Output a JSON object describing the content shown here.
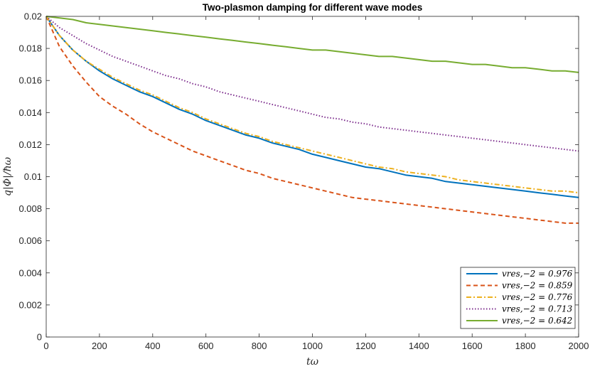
{
  "chart_data": {
    "type": "line",
    "title": "Two-plasmon damping for different wave modes",
    "xlabel": "tω",
    "ylabel": "q|Φ|/ħω",
    "xlim": [
      0,
      2000
    ],
    "ylim": [
      0,
      0.02
    ],
    "xticks": [
      0,
      200,
      400,
      600,
      800,
      1000,
      1200,
      1400,
      1600,
      1800,
      2000
    ],
    "yticks": [
      0,
      0.002,
      0.004,
      0.006,
      0.008,
      0.01,
      0.012,
      0.014,
      0.016,
      0.018,
      0.02
    ],
    "ytick_labels": [
      "0",
      "0.002",
      "0.004",
      "0.006",
      "0.008",
      "0.01",
      "0.012",
      "0.014",
      "0.016",
      "0.018",
      "0.02"
    ],
    "grid": false,
    "legend_position": "bottom-right",
    "series": [
      {
        "name": "v_{res,-2} = 0.976",
        "legend_label": "vres,−2 = 0.976",
        "color": "#0072BD",
        "style": "solid",
        "x": [
          0,
          50,
          100,
          150,
          200,
          250,
          300,
          350,
          400,
          450,
          500,
          550,
          600,
          650,
          700,
          750,
          800,
          850,
          900,
          950,
          1000,
          1050,
          1100,
          1150,
          1200,
          1250,
          1300,
          1350,
          1400,
          1450,
          1500,
          1550,
          1600,
          1650,
          1700,
          1750,
          1800,
          1850,
          1900,
          1950,
          2000
        ],
        "y": [
          0.02,
          0.0188,
          0.0179,
          0.0172,
          0.0166,
          0.0161,
          0.0157,
          0.0153,
          0.015,
          0.0146,
          0.0142,
          0.0139,
          0.0135,
          0.0132,
          0.0129,
          0.0126,
          0.0124,
          0.0121,
          0.0119,
          0.0117,
          0.0114,
          0.0112,
          0.011,
          0.0108,
          0.0106,
          0.0105,
          0.0103,
          0.0101,
          0.01,
          0.0099,
          0.0097,
          0.0096,
          0.0095,
          0.0094,
          0.0093,
          0.0092,
          0.0091,
          0.009,
          0.0089,
          0.0088,
          0.0087
        ]
      },
      {
        "name": "v_{res,-2} = 0.859",
        "legend_label": "vres,−2 = 0.859",
        "color": "#D95319",
        "style": "dashed",
        "x": [
          0,
          50,
          100,
          150,
          200,
          250,
          300,
          350,
          400,
          450,
          500,
          550,
          600,
          650,
          700,
          750,
          800,
          850,
          900,
          950,
          1000,
          1050,
          1100,
          1150,
          1200,
          1250,
          1300,
          1350,
          1400,
          1450,
          1500,
          1550,
          1600,
          1650,
          1700,
          1750,
          1800,
          1850,
          1900,
          1950,
          2000
        ],
        "y": [
          0.02,
          0.0181,
          0.0169,
          0.0159,
          0.015,
          0.0144,
          0.0139,
          0.0133,
          0.0128,
          0.0124,
          0.012,
          0.0116,
          0.0113,
          0.011,
          0.0107,
          0.0104,
          0.0102,
          0.0099,
          0.0097,
          0.0095,
          0.0093,
          0.0091,
          0.0089,
          0.0087,
          0.0086,
          0.0085,
          0.0084,
          0.0083,
          0.0082,
          0.0081,
          0.008,
          0.0079,
          0.0078,
          0.0077,
          0.0076,
          0.0075,
          0.0074,
          0.0073,
          0.0072,
          0.0071,
          0.0071
        ]
      },
      {
        "name": "v_{res,-2} = 0.776",
        "legend_label": "vres,−2 = 0.776",
        "color": "#EDB120",
        "style": "dashdot",
        "x": [
          0,
          50,
          100,
          150,
          200,
          250,
          300,
          350,
          400,
          450,
          500,
          550,
          600,
          650,
          700,
          750,
          800,
          850,
          900,
          950,
          1000,
          1050,
          1100,
          1150,
          1200,
          1250,
          1300,
          1350,
          1400,
          1450,
          1500,
          1550,
          1600,
          1650,
          1700,
          1750,
          1800,
          1850,
          1900,
          1950,
          2000
        ],
        "y": [
          0.02,
          0.0188,
          0.0179,
          0.0172,
          0.0167,
          0.0162,
          0.0158,
          0.0154,
          0.0151,
          0.0147,
          0.0143,
          0.014,
          0.0136,
          0.0133,
          0.013,
          0.0127,
          0.0125,
          0.0122,
          0.012,
          0.0118,
          0.0116,
          0.0114,
          0.0112,
          0.011,
          0.0108,
          0.0106,
          0.0105,
          0.0103,
          0.0102,
          0.0101,
          0.01,
          0.0098,
          0.0097,
          0.0096,
          0.0095,
          0.0094,
          0.0093,
          0.0092,
          0.0091,
          0.0091,
          0.009
        ]
      },
      {
        "name": "v_{res,-2} = 0.713",
        "legend_label": "vres,−2 = 0.713",
        "color": "#7E2F8E",
        "style": "dotted",
        "x": [
          0,
          50,
          100,
          150,
          200,
          250,
          300,
          350,
          400,
          450,
          500,
          550,
          600,
          650,
          700,
          750,
          800,
          850,
          900,
          950,
          1000,
          1050,
          1100,
          1150,
          1200,
          1250,
          1300,
          1350,
          1400,
          1450,
          1500,
          1550,
          1600,
          1650,
          1700,
          1750,
          1800,
          1850,
          1900,
          1950,
          2000
        ],
        "y": [
          0.02,
          0.0193,
          0.0188,
          0.0183,
          0.0179,
          0.0175,
          0.0172,
          0.0169,
          0.0166,
          0.0163,
          0.0161,
          0.0158,
          0.0156,
          0.0153,
          0.0151,
          0.0149,
          0.0147,
          0.0145,
          0.0143,
          0.0141,
          0.0139,
          0.0137,
          0.0136,
          0.0134,
          0.0133,
          0.0131,
          0.013,
          0.0129,
          0.0128,
          0.0127,
          0.0126,
          0.0125,
          0.0124,
          0.0123,
          0.0122,
          0.0121,
          0.012,
          0.0119,
          0.0118,
          0.0117,
          0.0116
        ]
      },
      {
        "name": "v_{res,-2} = 0.642",
        "legend_label": "vres,−2 = 0.642",
        "color": "#77AC30",
        "style": "solid",
        "x": [
          0,
          50,
          100,
          150,
          200,
          250,
          300,
          350,
          400,
          450,
          500,
          550,
          600,
          650,
          700,
          750,
          800,
          850,
          900,
          950,
          1000,
          1050,
          1100,
          1150,
          1200,
          1250,
          1300,
          1350,
          1400,
          1450,
          1500,
          1550,
          1600,
          1650,
          1700,
          1750,
          1800,
          1850,
          1900,
          1950,
          2000
        ],
        "y": [
          0.02,
          0.0199,
          0.0198,
          0.0196,
          0.0195,
          0.0194,
          0.0193,
          0.0192,
          0.0191,
          0.019,
          0.0189,
          0.0188,
          0.0187,
          0.0186,
          0.0185,
          0.0184,
          0.0183,
          0.0182,
          0.0181,
          0.018,
          0.0179,
          0.0179,
          0.0178,
          0.0177,
          0.0176,
          0.0175,
          0.0175,
          0.0174,
          0.0173,
          0.0172,
          0.0172,
          0.0171,
          0.017,
          0.017,
          0.0169,
          0.0168,
          0.0168,
          0.0167,
          0.0166,
          0.0166,
          0.0165
        ]
      }
    ]
  }
}
